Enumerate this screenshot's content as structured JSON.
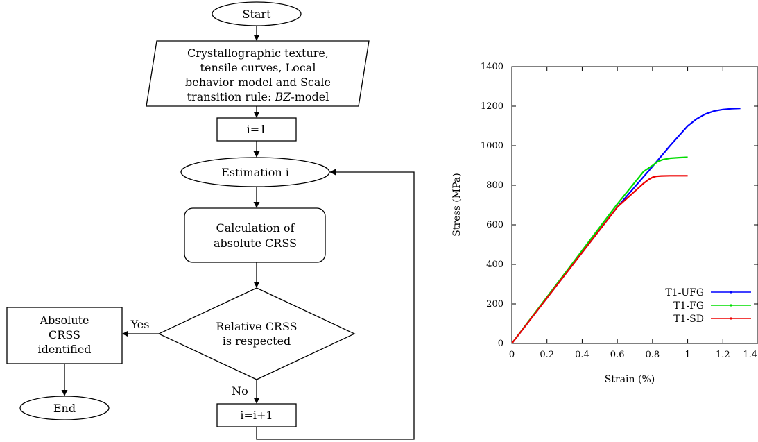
{
  "flowchart": {
    "start": "Start",
    "input_lines": [
      "Crystallographic texture,",
      "tensile curves, Local",
      "behavior model and Scale",
      "transition rule: ",
      "BZ",
      "-model"
    ],
    "init": "i=1",
    "estimation": "Estimation i",
    "calc_lines": [
      "Calculation of",
      "absolute CRSS"
    ],
    "decision_lines": [
      "Relative CRSS",
      "is respected"
    ],
    "yes_label": "Yes",
    "no_label": "No",
    "identified_lines": [
      "Absolute",
      "CRSS",
      "identified"
    ],
    "end": "End",
    "increment": "i=i+1"
  },
  "chart_data": {
    "type": "line",
    "title": "",
    "xlabel": "Strain (%)",
    "ylabel": "Stress (MPa)",
    "xlim": [
      0,
      1.4
    ],
    "ylim": [
      0,
      1400
    ],
    "x_ticks": [
      0,
      0.2,
      0.4,
      0.6,
      0.8,
      1,
      1.2,
      1.4
    ],
    "x_tick_labels": [
      "0",
      "0.2",
      "0.4",
      "0.6",
      "0.8",
      "1",
      "1.2",
      "1.4"
    ],
    "y_ticks": [
      0,
      200,
      400,
      600,
      800,
      1000,
      1200,
      1400
    ],
    "y_tick_labels": [
      "0",
      "200",
      "400",
      "600",
      "800",
      "1000",
      "1200",
      "1400"
    ],
    "grid": false,
    "legend_position": "bottom-right",
    "series": [
      {
        "name": "T1-UFG",
        "color": "#0000ff",
        "x": [
          0,
          0.2,
          0.4,
          0.6,
          0.8,
          0.9,
          1.0,
          1.05,
          1.1,
          1.15,
          1.2,
          1.25,
          1.3
        ],
        "y": [
          0,
          230,
          460,
          690,
          895,
          1000,
          1100,
          1135,
          1160,
          1175,
          1183,
          1187,
          1189
        ]
      },
      {
        "name": "T1-FG",
        "color": "#00dd00",
        "x": [
          0,
          0.2,
          0.4,
          0.6,
          0.75,
          0.8,
          0.83,
          0.86,
          0.9,
          0.95,
          1.0
        ],
        "y": [
          0,
          235,
          470,
          705,
          870,
          900,
          920,
          930,
          937,
          940,
          942
        ]
      },
      {
        "name": "T1-SD",
        "color": "#ee0000",
        "x": [
          0,
          0.2,
          0.4,
          0.6,
          0.75,
          0.78,
          0.8,
          0.82,
          0.85,
          0.9,
          1.0
        ],
        "y": [
          0,
          230,
          460,
          690,
          810,
          830,
          840,
          845,
          847,
          848,
          848
        ]
      }
    ]
  }
}
